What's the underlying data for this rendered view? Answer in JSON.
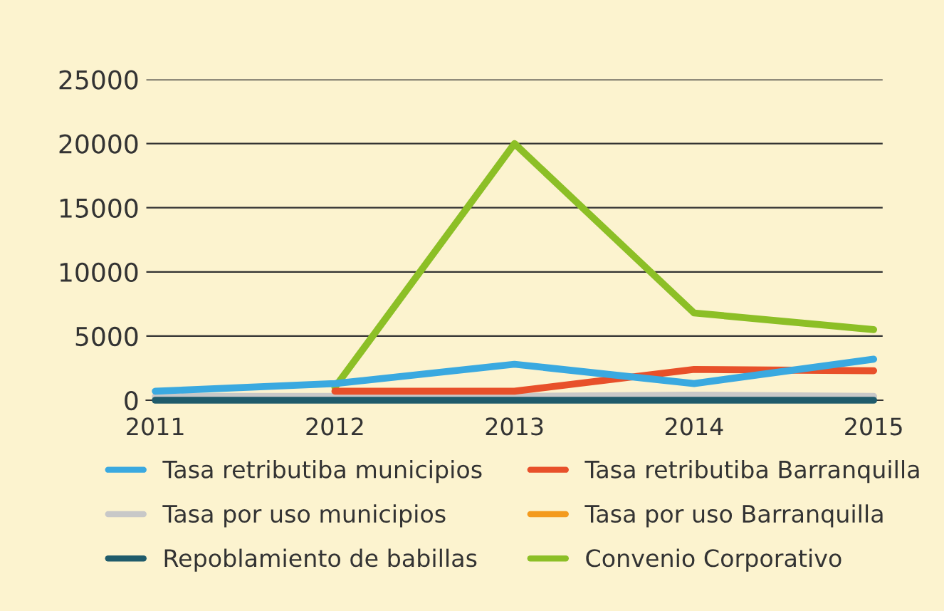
{
  "chart_data": {
    "type": "line",
    "categories": [
      "2011",
      "2012",
      "2013",
      "2014",
      "2015"
    ],
    "series": [
      {
        "name": "Tasa retributiba municipios",
        "color": "#3aa9e0",
        "values": [
          700,
          1300,
          2800,
          1300,
          3200
        ]
      },
      {
        "name": "Tasa retributiba Barranquilla",
        "color": "#e8502a",
        "values": [
          null,
          700,
          700,
          2400,
          2300
        ]
      },
      {
        "name": "Tasa por uso municipios",
        "color": "#c8c8c8",
        "values": [
          300,
          300,
          300,
          400,
          300
        ]
      },
      {
        "name": "Tasa por uso Barranquilla",
        "color": "#f39a1e",
        "values": [
          null,
          null,
          null,
          null,
          null
        ]
      },
      {
        "name": "Repoblamiento de babillas",
        "color": "#1f5b6b",
        "values": [
          0,
          0,
          0,
          0,
          0
        ]
      },
      {
        "name": "Convenio Corporativo",
        "color": "#8cbf26",
        "values": [
          null,
          1000,
          20000,
          6800,
          5500
        ]
      }
    ],
    "ylim": [
      0,
      25000
    ],
    "yticks": [
      0,
      5000,
      10000,
      15000,
      20000,
      25000
    ],
    "grid": "y",
    "legend": "bottom",
    "marker": "none",
    "line_style": "solid"
  }
}
